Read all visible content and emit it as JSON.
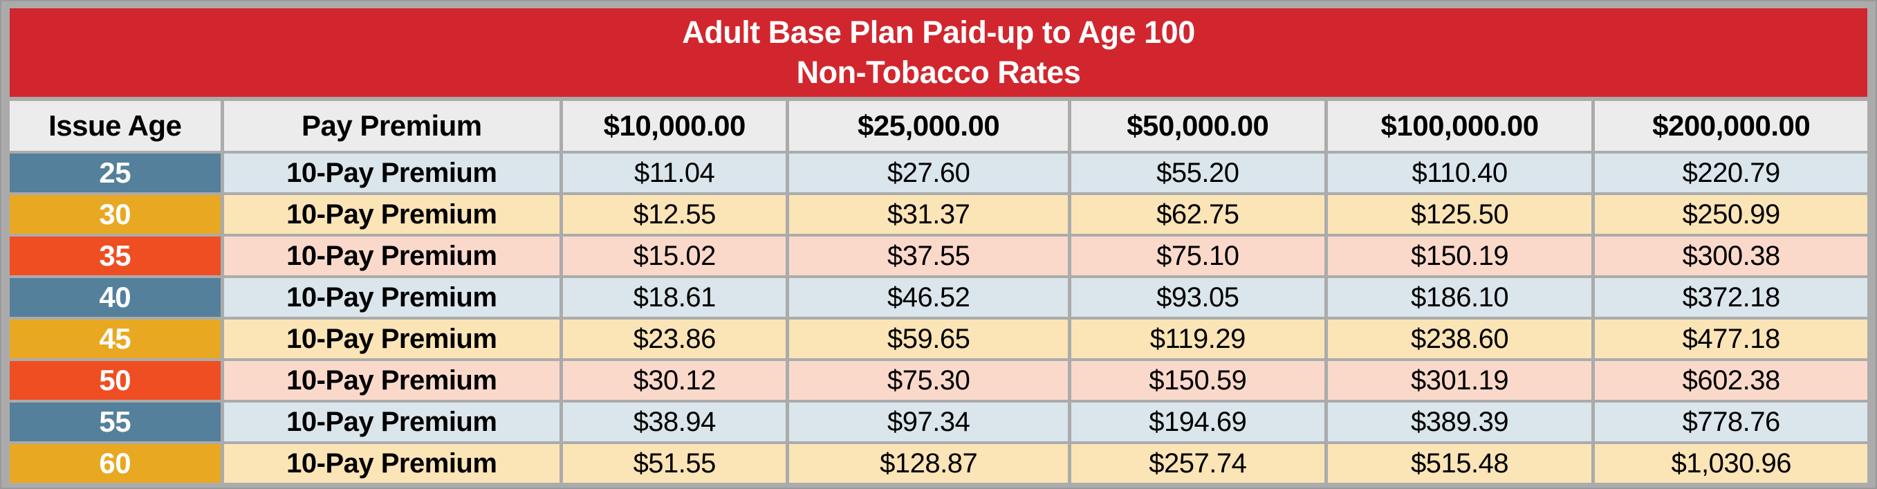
{
  "title": {
    "line1": "Adult Base Plan Paid-up to Age 100",
    "line2": "Non-Tobacco Rates"
  },
  "table": {
    "columns": [
      "Issue Age",
      "Pay Premium",
      "$10,000.00",
      "$25,000.00",
      "$50,000.00",
      "$100,000.00",
      "$200,000.00"
    ],
    "rows": [
      {
        "age": "25",
        "pay": "10-Pay Premium",
        "accent": "blue",
        "band": "blue",
        "values": [
          "$11.04",
          "$27.60",
          "$55.20",
          "$110.40",
          "$220.79"
        ]
      },
      {
        "age": "30",
        "pay": "10-Pay Premium",
        "accent": "amber",
        "band": "cream",
        "values": [
          "$12.55",
          "$31.37",
          "$62.75",
          "$125.50",
          "$250.99"
        ]
      },
      {
        "age": "35",
        "pay": "10-Pay Premium",
        "accent": "orange",
        "band": "pink",
        "values": [
          "$15.02",
          "$37.55",
          "$75.10",
          "$150.19",
          "$300.38"
        ]
      },
      {
        "age": "40",
        "pay": "10-Pay Premium",
        "accent": "blue",
        "band": "blue",
        "values": [
          "$18.61",
          "$46.52",
          "$93.05",
          "$186.10",
          "$372.18"
        ]
      },
      {
        "age": "45",
        "pay": "10-Pay Premium",
        "accent": "amber",
        "band": "cream",
        "values": [
          "$23.86",
          "$59.65",
          "$119.29",
          "$238.60",
          "$477.18"
        ]
      },
      {
        "age": "50",
        "pay": "10-Pay Premium",
        "accent": "orange",
        "band": "pink",
        "values": [
          "$30.12",
          "$75.30",
          "$150.59",
          "$301.19",
          "$602.38"
        ]
      },
      {
        "age": "55",
        "pay": "10-Pay Premium",
        "accent": "blue",
        "band": "blue",
        "values": [
          "$38.94",
          "$97.34",
          "$194.69",
          "$389.39",
          "$778.76"
        ]
      },
      {
        "age": "60",
        "pay": "10-Pay Premium",
        "accent": "amber",
        "band": "cream",
        "values": [
          "$51.55",
          "$128.87",
          "$257.74",
          "$515.48",
          "$1,030.96"
        ]
      }
    ]
  },
  "colors": {
    "red": "#D2262E",
    "blue": "#54809B",
    "amber": "#E9A822",
    "orange": "#EF4E23",
    "rowBlue": "#DAE5EC",
    "rowCream": "#FBE4B6",
    "rowPink": "#FAD9CB",
    "headerBg": "#ECECEC",
    "frameGray": "#ABABAB"
  }
}
